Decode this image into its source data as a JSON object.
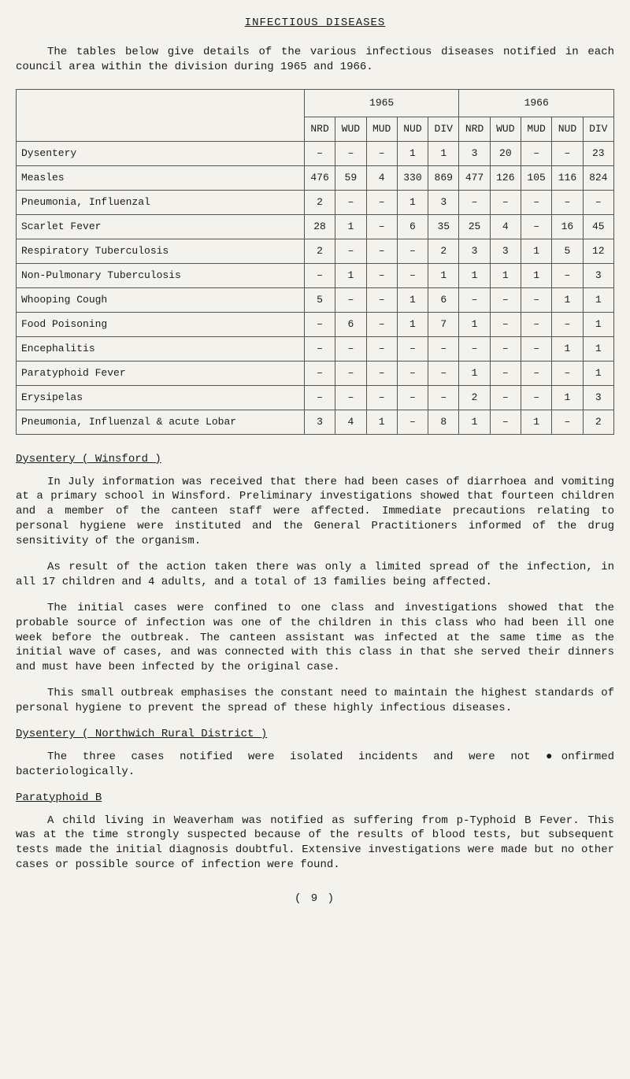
{
  "title": "INFECTIOUS DISEASES",
  "intro": "The tables below give details of the various infectious diseases notified in each council area within the division during 1965 and 1966.",
  "table": {
    "years": [
      "1965",
      "1966"
    ],
    "cols": [
      "NRD",
      "WUD",
      "MUD",
      "NUD",
      "DIV",
      "NRD",
      "WUD",
      "MUD",
      "NUD",
      "DIV"
    ],
    "rows": [
      {
        "name": "Dysentery",
        "v": [
          "–",
          "–",
          "–",
          "1",
          "1",
          "3",
          "20",
          "–",
          "–",
          "23"
        ]
      },
      {
        "name": "Measles",
        "v": [
          "476",
          "59",
          "4",
          "330",
          "869",
          "477",
          "126",
          "105",
          "116",
          "824"
        ]
      },
      {
        "name": "Pneumonia, Influenzal",
        "v": [
          "2",
          "–",
          "–",
          "1",
          "3",
          "–",
          "–",
          "–",
          "–",
          "–"
        ]
      },
      {
        "name": "Scarlet Fever",
        "v": [
          "28",
          "1",
          "–",
          "6",
          "35",
          "25",
          "4",
          "–",
          "16",
          "45"
        ]
      },
      {
        "name": "Respiratory Tuberculosis",
        "v": [
          "2",
          "–",
          "–",
          "–",
          "2",
          "3",
          "3",
          "1",
          "5",
          "12"
        ]
      },
      {
        "name": "Non-Pulmonary Tuberculosis",
        "v": [
          "–",
          "1",
          "–",
          "–",
          "1",
          "1",
          "1",
          "1",
          "–",
          "3"
        ]
      },
      {
        "name": "Whooping Cough",
        "v": [
          "5",
          "–",
          "–",
          "1",
          "6",
          "–",
          "–",
          "–",
          "1",
          "1"
        ]
      },
      {
        "name": "Food Poisoning",
        "v": [
          "–",
          "6",
          "–",
          "1",
          "7",
          "1",
          "–",
          "–",
          "–",
          "1"
        ]
      },
      {
        "name": "Encephalitis",
        "v": [
          "–",
          "–",
          "–",
          "–",
          "–",
          "–",
          "–",
          "–",
          "1",
          "1"
        ]
      },
      {
        "name": "Paratyphoid Fever",
        "v": [
          "–",
          "–",
          "–",
          "–",
          "–",
          "1",
          "–",
          "–",
          "–",
          "1"
        ]
      },
      {
        "name": "Erysipelas",
        "v": [
          "–",
          "–",
          "–",
          "–",
          "–",
          "2",
          "–",
          "–",
          "1",
          "3"
        ]
      },
      {
        "name": "Pneumonia, Influenzal & acute Lobar",
        "v": [
          "3",
          "4",
          "1",
          "–",
          "8",
          "1",
          "–",
          "1",
          "–",
          "2"
        ]
      }
    ]
  },
  "sec1": {
    "head": "Dysentery ( Winsford )",
    "p1": "In July information was received that there had been cases of diarrhoea and vomiting at a primary school in Winsford.  Preliminary investigations showed that fourteen children and a member of the canteen staff were affected. Immediate precautions relating to personal hygiene were instituted and the General Practitioners informed of the drug sensitivity of the organism.",
    "p2": "As result of the action taken there was only a limited spread of the infection, in all 17 children and 4 adults, and a total of 13 families being affected.",
    "p3": "The initial cases were confined to one class and investigations showed that the probable source of infection was one of the children in this class who had been ill one week before the outbreak.  The canteen assistant was infected at the same time as the initial wave of cases, and was connected with this class in that she served their dinners and must have been infected by the original case.",
    "p4": "This small outbreak emphasises the constant need to maintain the highest standards of personal hygiene to prevent the spread of these highly infectious diseases."
  },
  "sec2": {
    "head": "Dysentery ( Northwich Rural District )",
    "p1": "The three cases notified were isolated incidents and were not ●onfirmed bacteriologically."
  },
  "sec3": {
    "head": "Paratyphoid B",
    "p1": "A child living in Weaverham was notified as suffering from p-Typhoid B Fever. This was at the time strongly suspected because of the results of blood tests, but subsequent tests made the initial diagnosis doubtful.  Extensive investigations were made but no other cases or possible source of infection were found."
  },
  "page": "( 9 )"
}
